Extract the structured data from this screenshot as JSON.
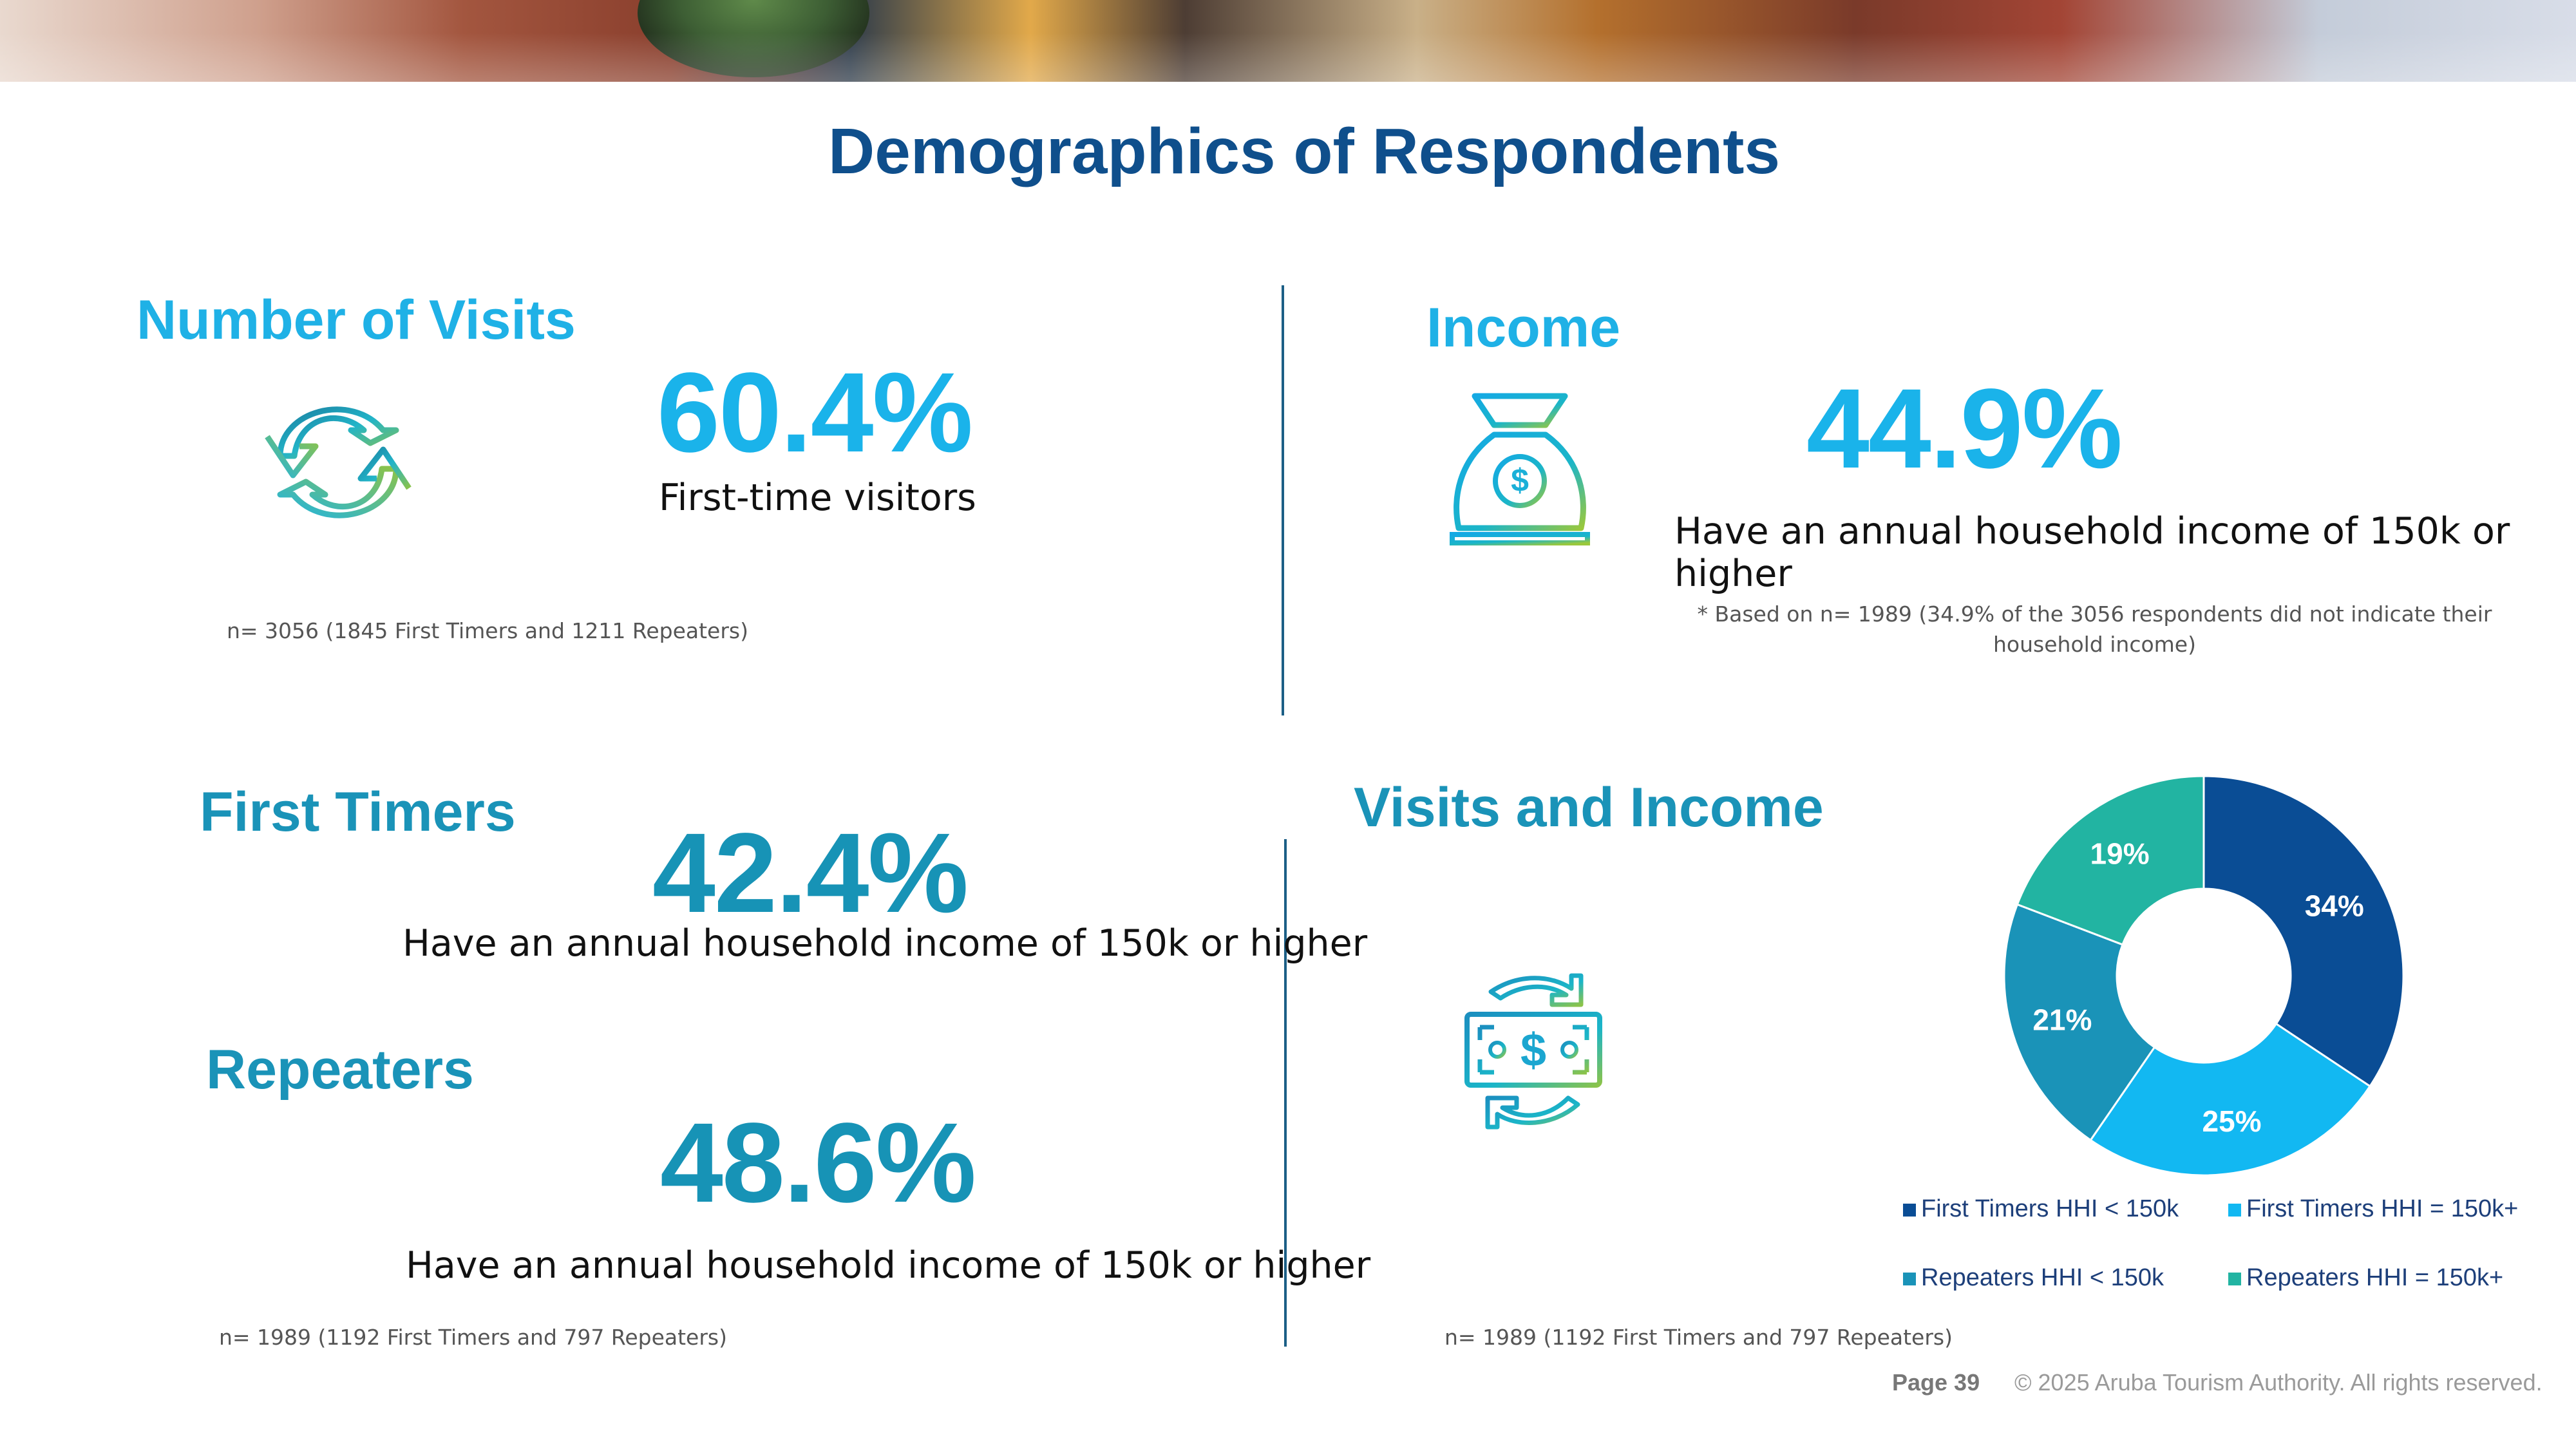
{
  "page": {
    "title": "Demographics of Respondents"
  },
  "visits": {
    "title": "Number of Visits",
    "percent": "60.4%",
    "label": "First-time visitors",
    "note": "n= 3056 (1845 First Timers and 1211 Repeaters)"
  },
  "income": {
    "title": "Income",
    "percent": "44.9%",
    "label": "Have an annual household income of 150k or higher",
    "note": "* Based on n= 1989 (34.9% of the 3056 respondents did not indicate their household income)"
  },
  "first_timers": {
    "title": "First Timers",
    "percent": "42.4%",
    "label": "Have an annual household income of 150k or higher"
  },
  "repeaters": {
    "title": "Repeaters",
    "percent": "48.6%",
    "label": "Have an annual household income of 150k or higher",
    "note": "n= 1989 (1192 First Timers and 797 Repeaters)"
  },
  "visits_income": {
    "title": "Visits and Income",
    "note": "n= 1989 (1192 First Timers and 797 Repeaters)"
  },
  "chart_data": {
    "type": "pie",
    "donut": true,
    "legend_position": "bottom",
    "categories": [
      "First Timers HHI < 150k",
      "First Timers HHI = 150k+",
      "Repeaters HHI < 150k",
      "Repeaters HHI = 150k+"
    ],
    "values": [
      34,
      25,
      21,
      19
    ],
    "labels": [
      "34%",
      "25%",
      "21%",
      "19%"
    ],
    "colors": [
      "#0a4d95",
      "#12b8f2",
      "#1a93b8",
      "#22b4a2"
    ]
  },
  "icons": {
    "visits": "refresh-arrows-icon",
    "income": "money-bag-icon",
    "visits_income": "money-exchange-icon"
  },
  "footer": {
    "page": "Page 39",
    "copyright": "© 2025 Aruba Tourism Authority. All rights reserved."
  }
}
